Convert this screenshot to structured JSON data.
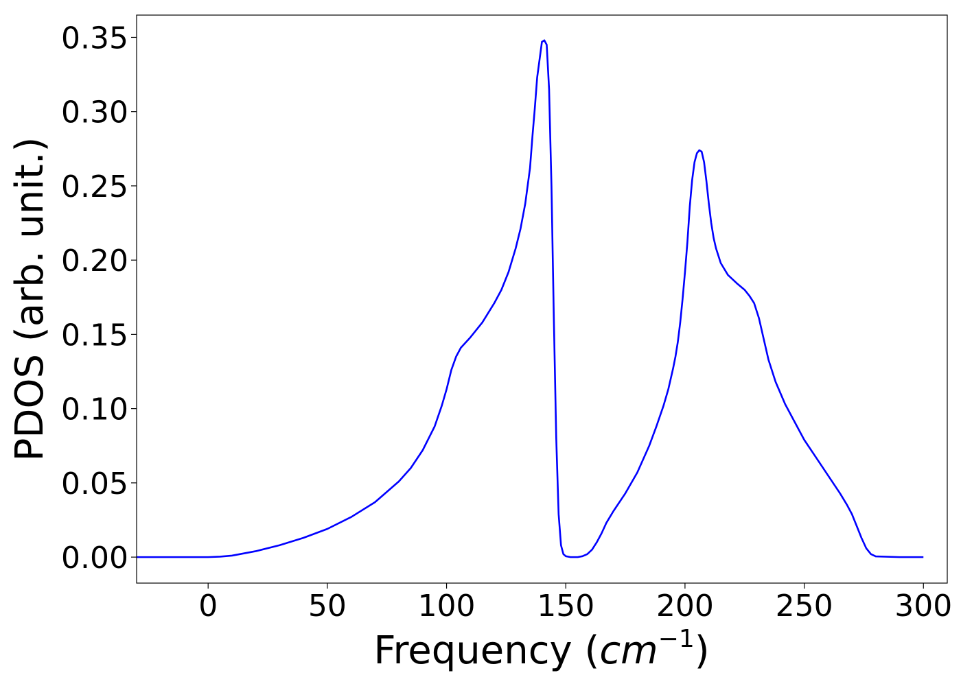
{
  "chart_data": {
    "type": "line",
    "title": "",
    "xlabel": "Frequency",
    "xlabel_unit_base": "cm",
    "xlabel_unit_exponent": "−1",
    "ylabel": "PDOS (arb. unit.)",
    "xlim": [
      -30,
      310
    ],
    "ylim": [
      -0.0175,
      0.365
    ],
    "xticks": [
      0,
      50,
      100,
      150,
      200,
      250,
      300
    ],
    "xtick_labels": [
      "0",
      "50",
      "100",
      "150",
      "200",
      "250",
      "300"
    ],
    "yticks": [
      0.0,
      0.05,
      0.1,
      0.15,
      0.2,
      0.25,
      0.3,
      0.35
    ],
    "ytick_labels": [
      "0.00",
      "0.05",
      "0.10",
      "0.15",
      "0.20",
      "0.25",
      "0.30",
      "0.35"
    ],
    "grid": false,
    "legend": "none",
    "series": [
      {
        "color": "#0000ff",
        "x": [
          -30,
          -20,
          -10,
          0,
          5,
          10,
          20,
          30,
          40,
          50,
          60,
          70,
          80,
          85,
          90,
          95,
          98,
          100,
          102,
          104,
          106,
          110,
          115,
          120,
          123,
          126,
          129,
          131,
          133,
          135,
          136,
          137,
          138,
          139,
          140,
          141,
          142,
          143,
          144,
          145,
          146,
          147,
          148,
          149,
          150,
          152,
          155,
          157,
          159,
          161,
          163,
          165,
          167,
          170,
          175,
          180,
          185,
          188,
          191,
          193,
          195,
          196,
          197,
          198,
          199,
          200,
          201,
          202,
          203,
          204,
          205,
          206,
          207,
          208,
          209,
          210,
          211,
          212,
          213,
          215,
          218,
          222,
          225,
          227,
          229,
          231,
          233,
          235,
          238,
          242,
          246,
          250,
          255,
          260,
          265,
          268,
          270,
          272,
          274,
          276,
          278,
          280,
          290,
          300
        ],
        "y": [
          0.0,
          0.0,
          0.0,
          0.0,
          0.0003,
          0.001,
          0.004,
          0.008,
          0.013,
          0.019,
          0.027,
          0.037,
          0.051,
          0.06,
          0.072,
          0.088,
          0.102,
          0.113,
          0.126,
          0.135,
          0.141,
          0.148,
          0.158,
          0.171,
          0.18,
          0.192,
          0.208,
          0.221,
          0.238,
          0.262,
          0.283,
          0.302,
          0.323,
          0.335,
          0.347,
          0.348,
          0.345,
          0.315,
          0.25,
          0.16,
          0.08,
          0.029,
          0.008,
          0.002,
          0.0006,
          0.0,
          0.0,
          0.0006,
          0.002,
          0.005,
          0.01,
          0.016,
          0.023,
          0.031,
          0.043,
          0.057,
          0.075,
          0.088,
          0.102,
          0.113,
          0.127,
          0.135,
          0.145,
          0.158,
          0.174,
          0.192,
          0.212,
          0.236,
          0.254,
          0.266,
          0.272,
          0.274,
          0.273,
          0.266,
          0.253,
          0.238,
          0.225,
          0.215,
          0.208,
          0.198,
          0.19,
          0.184,
          0.18,
          0.176,
          0.171,
          0.161,
          0.147,
          0.133,
          0.118,
          0.103,
          0.091,
          0.079,
          0.067,
          0.055,
          0.043,
          0.035,
          0.029,
          0.021,
          0.013,
          0.006,
          0.002,
          0.0005,
          0.0,
          0.0
        ]
      }
    ]
  }
}
